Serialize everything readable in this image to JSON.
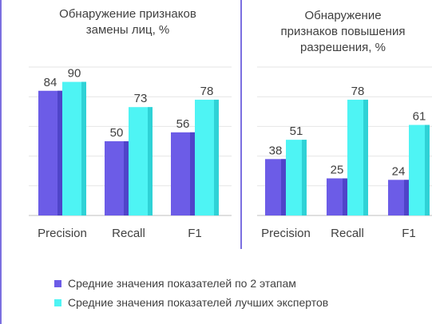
{
  "chart_data": [
    {
      "type": "bar",
      "title": "Обнаружение признаков замены лиц, %",
      "categories": [
        "Precision",
        "Recall",
        "F1"
      ],
      "series": [
        {
          "name": "Средние значения показателей по 2 этапам",
          "values": [
            84,
            50,
            56
          ]
        },
        {
          "name": "Средние значения показателей лучших экспертов",
          "values": [
            90,
            73,
            78
          ]
        }
      ],
      "ylim": [
        0,
        100
      ],
      "grid": true,
      "legend": "bottom"
    },
    {
      "type": "bar",
      "title": "Обнаружение признаков повышения разрешения, %",
      "categories": [
        "Precision",
        "Recall",
        "F1"
      ],
      "series": [
        {
          "name": "Средние значения показателей по 2 этапам",
          "values": [
            38,
            25,
            24
          ]
        },
        {
          "name": "Средние значения показателей лучших экспертов",
          "values": [
            51,
            78,
            61
          ]
        }
      ],
      "ylim": [
        0,
        100
      ],
      "grid": true,
      "legend": "bottom"
    }
  ],
  "titles": {
    "left": [
      "Обнаружение признаков",
      "замены лиц, %"
    ],
    "right": [
      "Обнаружение",
      "признаков повышения",
      "разрешения, %"
    ]
  },
  "legend": [
    {
      "label": "Средние значения показателей по 2 этапам",
      "color": "#6c5ce7"
    },
    {
      "label": "Средние значения показателей лучших экспертов",
      "color": "#4ef4f4"
    }
  ],
  "colors": {
    "series1": "#6c5ce7",
    "series1_dark": "#4f44c9",
    "series2": "#4ef4f4",
    "series2_dark": "#2fd2d6",
    "grid": "#e6e6e6",
    "axis": "#bfbfbf",
    "text": "#404040"
  }
}
